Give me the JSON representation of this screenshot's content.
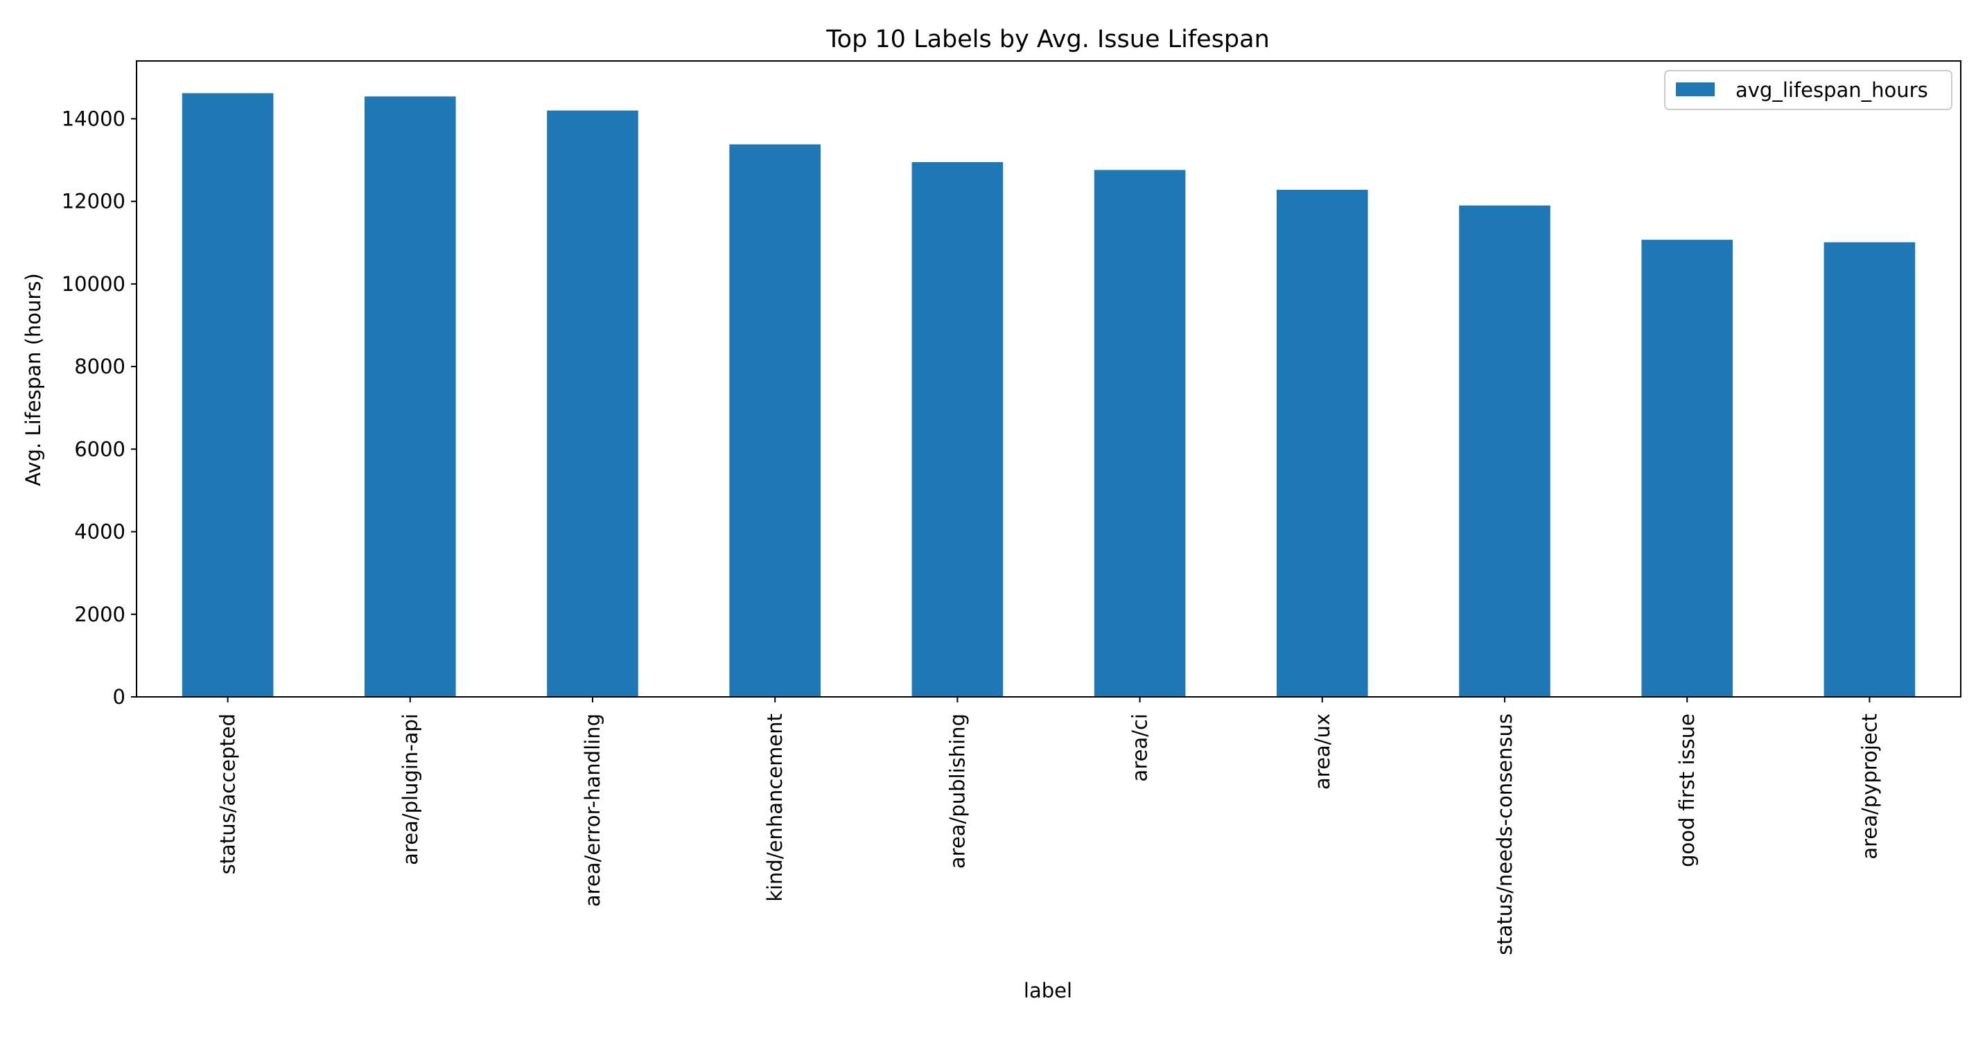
{
  "chart_data": {
    "type": "bar",
    "title": "Top 10 Labels by Avg. Issue Lifespan",
    "xlabel": "label",
    "ylabel": "Avg. Lifespan (hours)",
    "categories": [
      "status/accepted",
      "area/plugin-api",
      "area/error-handling",
      "kind/enhancement",
      "area/publishing",
      "area/ci",
      "area/ux",
      "status/needs-consensus",
      "good first issue",
      "area/pyproject"
    ],
    "series": [
      {
        "name": "avg_lifespan_hours",
        "color": "#1f77b4",
        "values": [
          14620,
          14540,
          14200,
          13380,
          12950,
          12760,
          12280,
          11900,
          11070,
          11010
        ]
      }
    ],
    "ylim": [
      0,
      15400
    ],
    "yticks": [
      0,
      2000,
      4000,
      6000,
      8000,
      10000,
      12000,
      14000
    ],
    "ytick_labels": [
      "0",
      "2000",
      "4000",
      "6000",
      "8000",
      "10000",
      "12000",
      "14000"
    ],
    "grid": false,
    "legend_position": "top-right"
  }
}
